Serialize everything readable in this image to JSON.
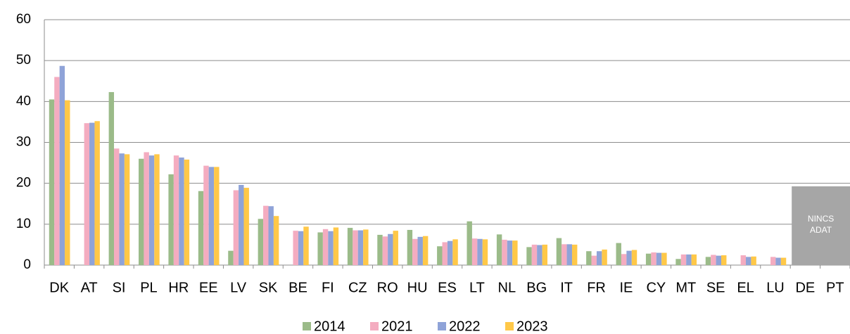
{
  "chart_data": {
    "type": "bar",
    "categories": [
      "DK",
      "AT",
      "SI",
      "PL",
      "HR",
      "EE",
      "LV",
      "SK",
      "BE",
      "FI",
      "CZ",
      "RO",
      "HU",
      "ES",
      "LT",
      "NL",
      "BG",
      "IT",
      "FR",
      "IE",
      "CY",
      "MT",
      "SE",
      "EL",
      "LU",
      "DE",
      "PT"
    ],
    "series": [
      {
        "name": "2014",
        "color": "#9bbb89",
        "values": [
          40.5,
          null,
          42.3,
          26,
          22.2,
          18.1,
          3.5,
          11.3,
          null,
          8,
          9.1,
          7.4,
          8.6,
          4.6,
          10.7,
          7.5,
          4.4,
          6.6,
          3.4,
          5.4,
          2.8,
          1.5,
          2,
          null,
          null,
          null,
          null
        ]
      },
      {
        "name": "2021",
        "color": "#f4acc0",
        "values": [
          46,
          34.7,
          28.5,
          27.6,
          26.8,
          24.3,
          18.3,
          14.5,
          8.4,
          8.8,
          8.5,
          7,
          6.4,
          5.6,
          6.5,
          6.2,
          5,
          5.1,
          2.3,
          2.7,
          3.1,
          2.6,
          2.5,
          2.4,
          2,
          null,
          null
        ]
      },
      {
        "name": "2022",
        "color": "#8fa3d8",
        "values": [
          48.7,
          34.8,
          27.3,
          26.8,
          26.3,
          24,
          19.6,
          14.4,
          8.3,
          8.3,
          8.5,
          7.6,
          6.9,
          5.9,
          6.4,
          6,
          4.9,
          5.1,
          3.4,
          3.5,
          3,
          2.6,
          2.3,
          2,
          1.8,
          null,
          null
        ]
      },
      {
        "name": "2023",
        "color": "#ffc848",
        "values": [
          40.3,
          35.2,
          27.1,
          27.1,
          25.8,
          24,
          18.9,
          12,
          9.4,
          9.2,
          8.7,
          8.4,
          7.1,
          6.3,
          6.3,
          6,
          5,
          5,
          3.8,
          3.7,
          3,
          2.6,
          2.4,
          2.1,
          1.8,
          null,
          null
        ]
      }
    ],
    "annotation": [
      "NINCS",
      "ADAT"
    ],
    "ylim": [
      0,
      60
    ],
    "yticks": [
      0,
      10,
      20,
      30,
      40,
      50,
      60
    ],
    "grid": true,
    "legend": "bottom"
  }
}
